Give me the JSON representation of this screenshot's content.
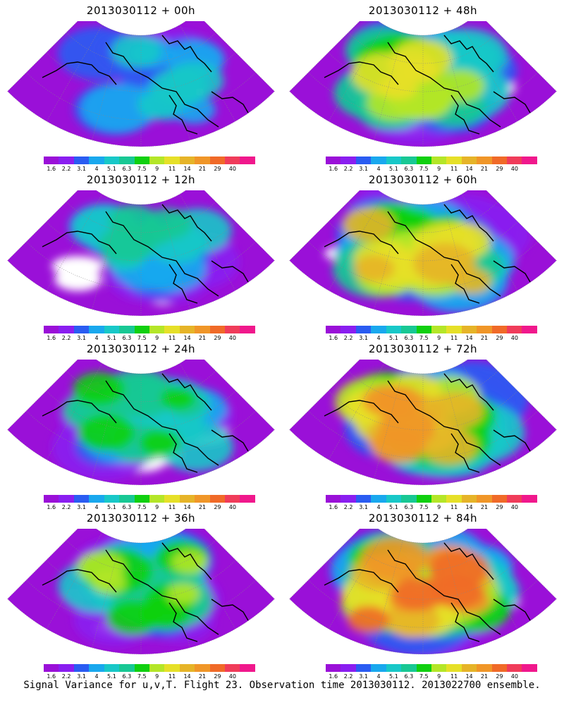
{
  "colors": [
    "#9a10d8",
    "#8a1ef0",
    "#2a5cf2",
    "#19a8ee",
    "#18c8c8",
    "#18c894",
    "#10d010",
    "#b4e628",
    "#e6e028",
    "#e6b428",
    "#f09628",
    "#f06a28",
    "#f03c5a",
    "#f0188c"
  ],
  "colorbar_labels": [
    "1.6",
    "2.2",
    "3.1",
    "4",
    "5.1",
    "6.3",
    "7.5",
    "9",
    "11",
    "14",
    "21",
    "29",
    "40"
  ],
  "panels": [
    {
      "title": "2013030112 + 00h",
      "intensity": 0
    },
    {
      "title": "2013030112 + 48h",
      "intensity": 4
    },
    {
      "title": "2013030112 + 12h",
      "intensity": 1
    },
    {
      "title": "2013030112 + 60h",
      "intensity": 5
    },
    {
      "title": "2013030112 + 24h",
      "intensity": 2
    },
    {
      "title": "2013030112 + 72h",
      "intensity": 6
    },
    {
      "title": "2013030112 + 36h",
      "intensity": 3
    },
    {
      "title": "2013030112 + 84h",
      "intensity": 7
    }
  ],
  "footer": "Signal Variance for u,v,T. Flight 23. Observation time 2013030112. 2013022700 ensemble."
}
